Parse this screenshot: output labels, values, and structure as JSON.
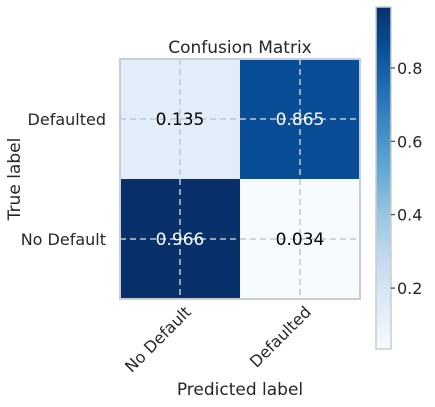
{
  "chart_data": {
    "type": "heatmap",
    "title": "Confusion Matrix",
    "xlabel": "Predicted label",
    "ylabel": "True label",
    "x_categories": [
      "No Default",
      "Defaulted"
    ],
    "y_categories": [
      "Defaulted",
      "No Default"
    ],
    "values": [
      [
        0.135,
        0.865
      ],
      [
        0.966,
        0.034
      ]
    ],
    "cell_labels": [
      [
        "0.135",
        "0.865"
      ],
      [
        "0.966",
        "0.034"
      ]
    ],
    "colormap": "Blues",
    "colorbar": {
      "min": 0.034,
      "max": 0.966,
      "ticks": [
        0.2,
        0.4,
        0.6,
        0.8
      ],
      "tick_labels": [
        "0.2",
        "0.4",
        "0.6",
        "0.8"
      ]
    },
    "grid": true,
    "colors": {
      "axis_frame": "#c9cdd2",
      "grid_line": "#c3c8ce",
      "text": "#262626"
    }
  }
}
